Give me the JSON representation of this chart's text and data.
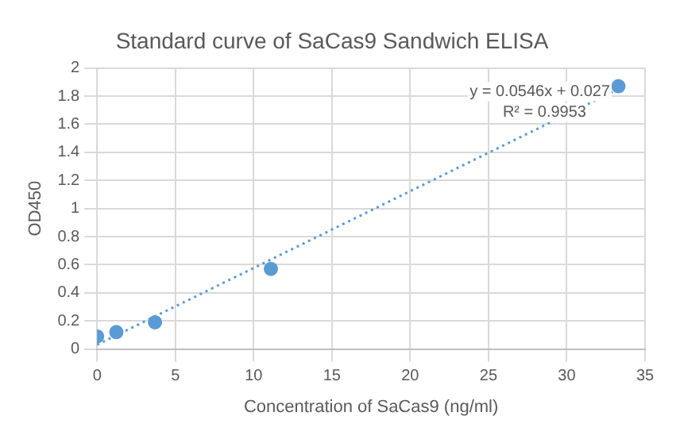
{
  "chart_data": {
    "type": "scatter",
    "title": "Standard curve of SaCas9 Sandwich ELISA",
    "xlabel": "Concentration of SaCas9 (ng/ml)",
    "ylabel": "OD450",
    "series": [
      {
        "color": "#5b9bd5",
        "x": [
          0,
          1.23,
          3.7,
          11.1,
          33.3
        ],
        "values": [
          0.09,
          0.12,
          0.19,
          0.57,
          1.87
        ],
        "marker": "circle"
      },
      {
        "type": "line",
        "color": "#5b9bd5",
        "x": [
          0,
          33.3
        ],
        "values": [
          0.03,
          1.85
        ],
        "marker": "none",
        "line_style": "dotted"
      }
    ],
    "annotations": [
      "y = 0.0546x + 0.027",
      "R² = 0.9953"
    ],
    "xlim": [
      0,
      35
    ],
    "xticks": [
      0,
      5,
      10,
      15,
      20,
      25,
      30,
      35
    ],
    "ylim": [
      0,
      2
    ],
    "yticks": [
      0,
      0.2,
      0.4,
      0.6,
      0.8,
      1,
      1.2,
      1.4,
      1.6,
      1.8,
      2
    ],
    "grid": true,
    "legend": false
  }
}
